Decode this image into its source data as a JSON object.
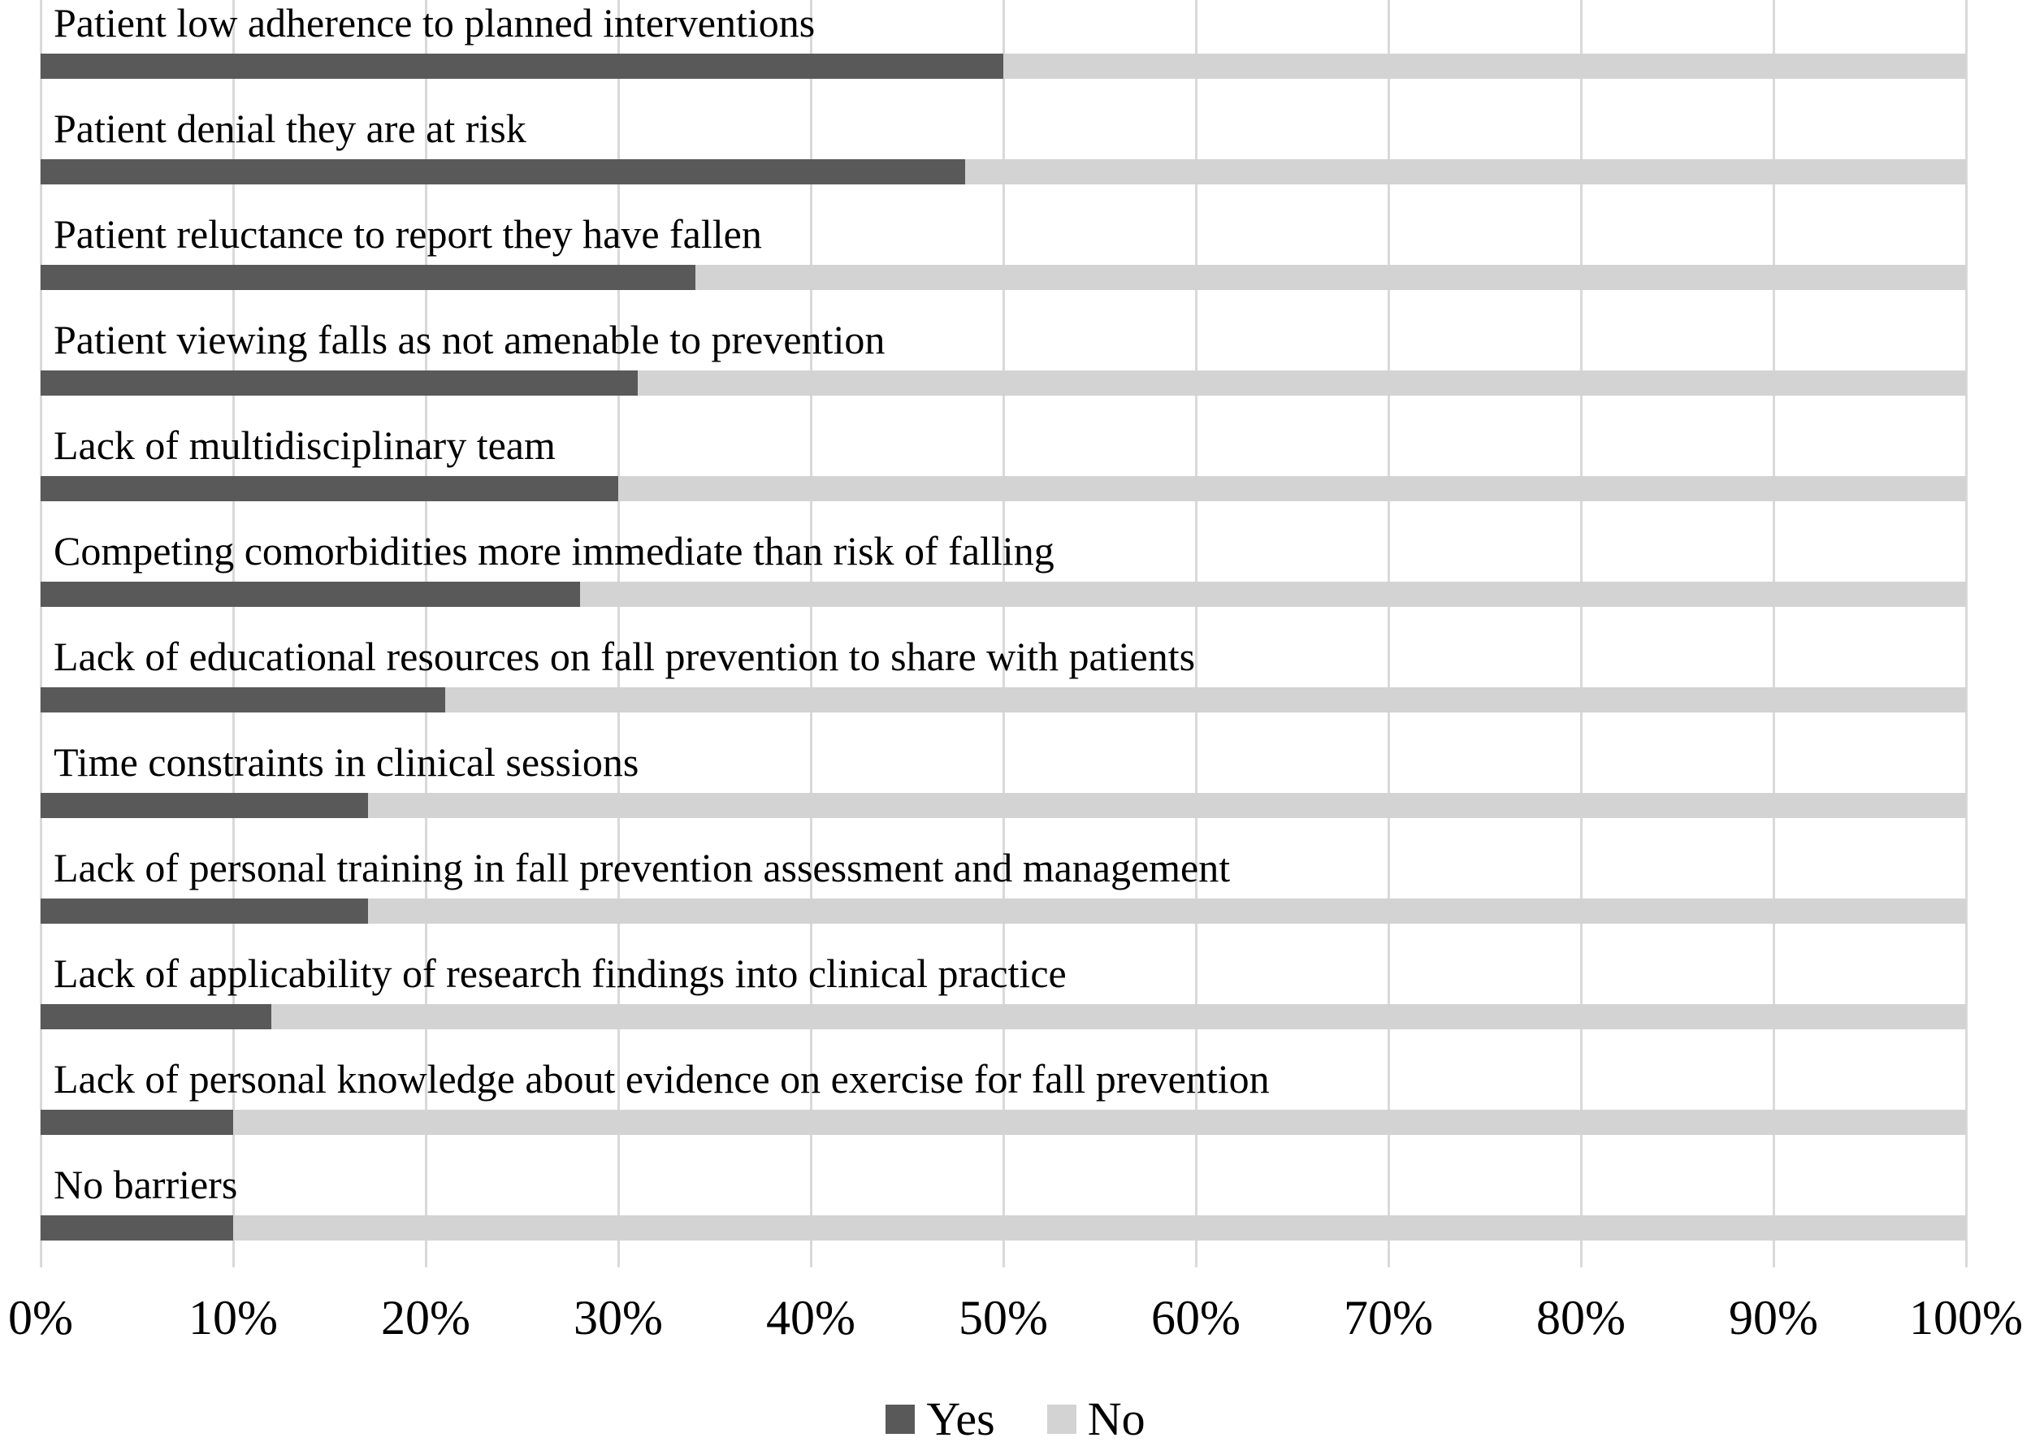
{
  "chart_data": {
    "type": "bar",
    "orientation": "horizontal-stacked",
    "title": "",
    "xlabel": "",
    "ylabel": "",
    "unit": "%",
    "categories": [
      "Patient low adherence to planned interventions",
      "Patient denial they are at risk",
      "Patient reluctance to report they have fallen",
      "Patient viewing falls as not amenable to prevention",
      "Lack of multidisciplinary team",
      "Competing comorbidities more immediate than risk of falling",
      "Lack of educational resources on fall prevention to share with patients",
      "Time constraints in clinical sessions",
      "Lack of personal training in fall prevention assessment and management",
      "Lack of applicability of research findings into clinical practice",
      "Lack of personal knowledge about evidence on exercise for fall prevention",
      "No barriers"
    ],
    "series": [
      {
        "name": "Yes",
        "color": "#595959",
        "values": [
          50,
          48,
          34,
          31,
          30,
          28,
          21,
          17,
          17,
          12,
          10,
          10
        ]
      },
      {
        "name": "No",
        "color": "#d3d3d3",
        "values": [
          50,
          52,
          66,
          69,
          70,
          72,
          79,
          83,
          83,
          88,
          90,
          90
        ]
      }
    ],
    "xlim": [
      0,
      100
    ],
    "x_ticks": [
      "0%",
      "10%",
      "20%",
      "30%",
      "40%",
      "50%",
      "60%",
      "70%",
      "80%",
      "90%",
      "100%"
    ],
    "grid": "vertical",
    "gridline_color": "#d9d9d9",
    "legend_position": "bottom",
    "text_color": "#000000",
    "background": "#ffffff"
  }
}
